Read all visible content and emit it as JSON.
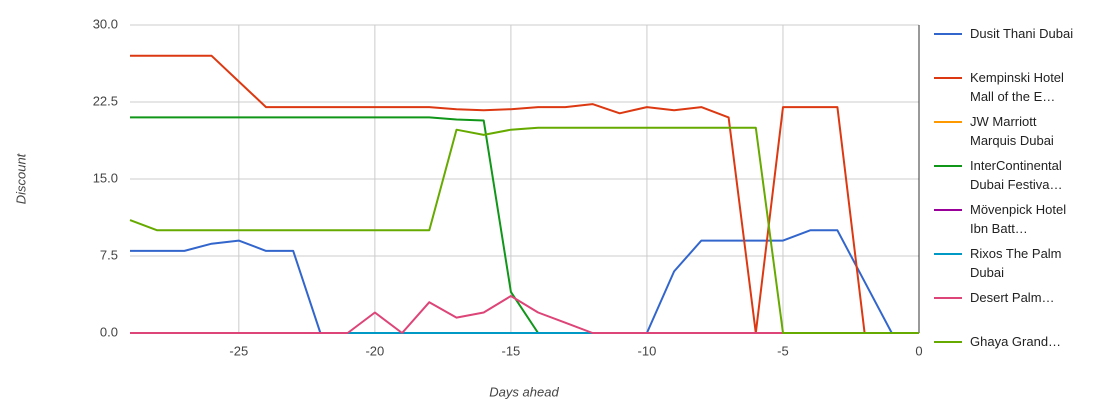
{
  "chart_data": {
    "type": "line",
    "y_label": "Discount",
    "x_label": "Days ahead",
    "x": [
      -29,
      -28,
      -27,
      -26,
      -25,
      -24,
      -23,
      -22,
      -21,
      -20,
      -19,
      -18,
      -17,
      -16,
      -15,
      -14,
      -13,
      -12,
      -11,
      -10,
      -9,
      -8,
      -7,
      -6,
      -5,
      -4,
      -3,
      -2,
      -1,
      0
    ],
    "xlim": [
      -29,
      0
    ],
    "xticks": [
      -25,
      -20,
      -15,
      -10,
      -5,
      0
    ],
    "ylim": [
      0,
      30
    ],
    "yticks": [
      {
        "value": 0,
        "label": "0.0"
      },
      7.5,
      {
        "value": 15,
        "label": "15.0"
      },
      22.5,
      {
        "value": 30,
        "label": "30.0"
      }
    ],
    "grid": true,
    "series": [
      {
        "name": "Dusit Thani Dubai",
        "color": "#3366cc",
        "values": [
          8,
          8,
          8,
          8.7,
          9,
          8,
          8,
          0,
          0,
          0,
          0,
          0,
          0,
          0,
          0,
          0,
          0,
          0,
          0,
          0,
          6,
          9,
          9,
          9,
          9,
          10,
          10,
          5,
          0,
          0
        ]
      },
      {
        "name": "Kempinski Hotel Mall of the E…",
        "color": "#dc3912",
        "values": [
          27,
          27,
          27,
          27,
          24.5,
          22,
          22,
          22,
          22,
          22,
          22,
          22,
          21.8,
          21.7,
          21.8,
          22,
          22,
          22.3,
          21.4,
          22,
          21.7,
          22,
          21,
          0,
          22,
          22,
          22,
          0,
          0,
          0
        ]
      },
      {
        "name": "JW Marriott Marquis Dubai",
        "color": "#ff9900",
        "values": [
          0,
          0,
          0,
          0,
          0,
          0,
          0,
          0,
          0,
          0,
          0,
          0,
          0,
          0,
          0,
          0,
          0,
          0,
          0,
          0,
          0,
          0,
          0,
          0,
          0,
          0,
          0,
          0,
          0,
          0
        ]
      },
      {
        "name": "InterContinental Dubai Festiva…",
        "color": "#109618",
        "values": [
          21,
          21,
          21,
          21,
          21,
          21,
          21,
          21,
          21,
          21,
          21,
          21,
          20.8,
          20.7,
          4,
          0,
          0,
          0,
          0,
          0,
          0,
          0,
          0,
          0,
          0,
          0,
          0,
          0,
          0,
          0
        ]
      },
      {
        "name": "Mövenpick Hotel Ibn Batt…",
        "color": "#990099",
        "values": [
          0,
          0,
          0,
          0,
          0,
          0,
          0,
          0,
          0,
          0,
          0,
          0,
          0,
          0,
          0,
          0,
          0,
          0,
          0,
          0,
          0,
          0,
          0,
          0,
          0,
          0,
          0,
          0,
          0,
          0
        ]
      },
      {
        "name": "Rixos The Palm Dubai",
        "color": "#0099c6",
        "values": [
          0,
          0,
          0,
          0,
          0,
          0,
          0,
          0,
          0,
          0,
          0,
          0,
          0,
          0,
          0,
          0,
          0,
          0,
          0,
          0,
          0,
          0,
          0,
          0,
          0,
          0,
          0,
          0,
          0,
          0
        ]
      },
      {
        "name": "Desert Palm…",
        "color": "#dd4477",
        "values": [
          0,
          0,
          0,
          0,
          0,
          0,
          0,
          0,
          0,
          2,
          0,
          3,
          1.5,
          2,
          3.6,
          2,
          1,
          0,
          0,
          0,
          0,
          0,
          0,
          0,
          0,
          0,
          0,
          0,
          0,
          0
        ]
      },
      {
        "name": "Ghaya Grand…",
        "color": "#66aa00",
        "values": [
          11,
          10,
          10,
          10,
          10,
          10,
          10,
          10,
          10,
          10,
          10,
          10,
          19.8,
          19.3,
          19.8,
          20,
          20,
          20,
          20,
          20,
          20,
          20,
          20,
          20,
          0,
          0,
          0,
          0,
          0,
          0
        ]
      }
    ]
  }
}
